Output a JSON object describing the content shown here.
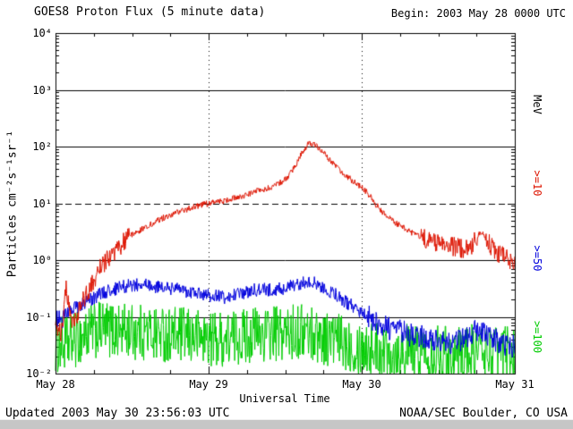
{
  "header": {
    "title": "GOES8 Proton Flux (5 minute data)",
    "begin_label": "Begin: 2003 May 28 0000 UTC"
  },
  "footer": {
    "updated": "Updated 2003 May 30 23:56:03 UTC",
    "source": "NOAA/SEC Boulder, CO USA"
  },
  "axes": {
    "y_label": "Particles  cm⁻²s⁻¹sr⁻¹",
    "x_label": "Universal Time",
    "y_tick_labels": [
      "10⁴",
      "10³",
      "10²",
      "10¹",
      "10⁰",
      "10⁻¹",
      "10⁻²"
    ],
    "x_tick_labels": [
      "May 28",
      "May 29",
      "May 30",
      "May 31"
    ]
  },
  "legend": {
    "unit": "MeV",
    "entries": [
      {
        "label": ">=10",
        "color": "#dd1400"
      },
      {
        "label": ">=50",
        "color": "#0000dd"
      },
      {
        "label": ">=100",
        "color": "#00cc00"
      }
    ]
  },
  "chart_data": {
    "type": "line",
    "title": "GOES8 Proton Flux (5 minute data)",
    "xlabel": "Universal Time",
    "ylabel": "Particles cm^-2 s^-1 sr^-1",
    "x_start": "2003 May 28 0000 UTC",
    "x_range_days": [
      0,
      3
    ],
    "x_day_labels": [
      "May 28",
      "May 29",
      "May 30",
      "May 31"
    ],
    "y_scale": "log",
    "y_log_range": [
      -2,
      4
    ],
    "grid": {
      "solid_decades": [
        3,
        2,
        0,
        -1
      ],
      "dashed_decades": [
        1
      ],
      "dotted_day_lines": [
        1,
        2
      ]
    },
    "points_per_day": 288,
    "series": [
      {
        "name": ">=10 MeV",
        "color": "#dd1400",
        "noise_dec": 0.055,
        "boost_below": 0.4,
        "boost_factor": 3.2,
        "anchors": [
          [
            0,
            0.07
          ],
          [
            0.04,
            0.05
          ],
          [
            0.07,
            0.35
          ],
          [
            0.1,
            0.08
          ],
          [
            0.15,
            0.12
          ],
          [
            0.2,
            0.25
          ],
          [
            0.25,
            0.45
          ],
          [
            0.3,
            0.8
          ],
          [
            0.35,
            1.1
          ],
          [
            0.4,
            1.6
          ],
          [
            0.5,
            2.8
          ],
          [
            0.6,
            4
          ],
          [
            0.7,
            5.5
          ],
          [
            0.8,
            7
          ],
          [
            0.9,
            8.5
          ],
          [
            1,
            10
          ],
          [
            1.1,
            11
          ],
          [
            1.2,
            13
          ],
          [
            1.3,
            16
          ],
          [
            1.4,
            19
          ],
          [
            1.5,
            26
          ],
          [
            1.55,
            38
          ],
          [
            1.6,
            70
          ],
          [
            1.63,
            95
          ],
          [
            1.66,
            115
          ],
          [
            1.7,
            105
          ],
          [
            1.74,
            85
          ],
          [
            1.8,
            55
          ],
          [
            1.85,
            40
          ],
          [
            1.9,
            30
          ],
          [
            1.95,
            24
          ],
          [
            2,
            19
          ],
          [
            2.05,
            14
          ],
          [
            2.1,
            9
          ],
          [
            2.15,
            6.5
          ],
          [
            2.2,
            5
          ],
          [
            2.3,
            3.3
          ],
          [
            2.4,
            2.4
          ],
          [
            2.5,
            2
          ],
          [
            2.6,
            1.7
          ],
          [
            2.7,
            1.5
          ],
          [
            2.74,
            2.2
          ],
          [
            2.78,
            3.2
          ],
          [
            2.82,
            2.2
          ],
          [
            2.88,
            1.4
          ],
          [
            2.94,
            1.1
          ],
          [
            3,
            0.95
          ]
        ]
      },
      {
        "name": ">=50 MeV",
        "color": "#0000dd",
        "noise_dec": 0.12,
        "boost_below": -1,
        "boost_factor": 1.8,
        "anchors": [
          [
            0,
            0.09
          ],
          [
            0.05,
            0.1
          ],
          [
            0.1,
            0.13
          ],
          [
            0.2,
            0.18
          ],
          [
            0.3,
            0.26
          ],
          [
            0.4,
            0.32
          ],
          [
            0.5,
            0.36
          ],
          [
            0.6,
            0.36
          ],
          [
            0.7,
            0.32
          ],
          [
            0.8,
            0.3
          ],
          [
            0.9,
            0.26
          ],
          [
            1,
            0.24
          ],
          [
            1.1,
            0.22
          ],
          [
            1.2,
            0.26
          ],
          [
            1.3,
            0.3
          ],
          [
            1.4,
            0.3
          ],
          [
            1.5,
            0.32
          ],
          [
            1.6,
            0.38
          ],
          [
            1.65,
            0.42
          ],
          [
            1.7,
            0.38
          ],
          [
            1.8,
            0.28
          ],
          [
            1.9,
            0.18
          ],
          [
            2,
            0.12
          ],
          [
            2.1,
            0.08
          ],
          [
            2.2,
            0.06
          ],
          [
            2.3,
            0.05
          ],
          [
            2.4,
            0.045
          ],
          [
            2.5,
            0.04
          ],
          [
            2.6,
            0.035
          ],
          [
            2.7,
            0.045
          ],
          [
            2.76,
            0.06
          ],
          [
            2.82,
            0.05
          ],
          [
            2.9,
            0.035
          ],
          [
            3,
            0.03
          ]
        ]
      },
      {
        "name": ">=100 MeV",
        "color": "#00cc00",
        "noise_dec": 0.5,
        "anchors": [
          [
            0,
            0.03
          ],
          [
            0.1,
            0.035
          ],
          [
            0.2,
            0.05
          ],
          [
            0.3,
            0.06
          ],
          [
            0.5,
            0.055
          ],
          [
            0.7,
            0.05
          ],
          [
            0.9,
            0.045
          ],
          [
            1.1,
            0.04
          ],
          [
            1.3,
            0.05
          ],
          [
            1.5,
            0.05
          ],
          [
            1.6,
            0.055
          ],
          [
            1.7,
            0.05
          ],
          [
            1.8,
            0.04
          ],
          [
            1.9,
            0.035
          ],
          [
            2,
            0.03
          ],
          [
            2.2,
            0.025
          ],
          [
            2.4,
            0.025
          ],
          [
            2.6,
            0.022
          ],
          [
            2.8,
            0.025
          ],
          [
            3,
            0.022
          ]
        ]
      }
    ]
  }
}
